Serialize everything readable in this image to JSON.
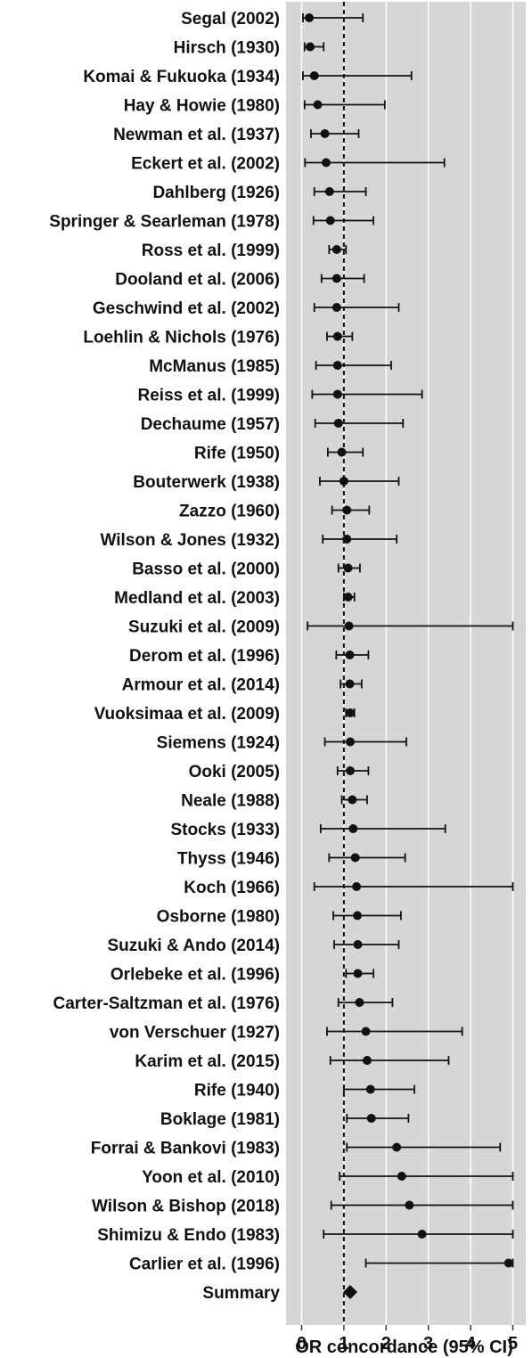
{
  "chart_data": {
    "type": "forest",
    "xlabel": "OR concordance (95% CI)",
    "xlim": [
      -0.1,
      5.25
    ],
    "xticks": [
      0,
      1,
      2,
      3,
      4,
      5
    ],
    "reference_line": 1,
    "grid": true,
    "colors": {
      "panel": "#d6d6d6",
      "gridline": "#ffffff",
      "marker": "#111111",
      "reference": "#111111"
    },
    "studies": [
      {
        "label": "Segal (2002)",
        "or": 0.18,
        "lo": 0.03,
        "hi": 1.45
      },
      {
        "label": "Hirsch (1930)",
        "or": 0.2,
        "lo": 0.07,
        "hi": 0.52
      },
      {
        "label": "Komai & Fukuoka (1934)",
        "or": 0.3,
        "lo": 0.03,
        "hi": 2.6
      },
      {
        "label": "Hay & Howie (1980)",
        "or": 0.38,
        "lo": 0.07,
        "hi": 1.97
      },
      {
        "label": "Newman et al. (1937)",
        "or": 0.55,
        "lo": 0.22,
        "hi": 1.35
      },
      {
        "label": "Eckert et al. (2002)",
        "or": 0.58,
        "lo": 0.08,
        "hi": 3.38
      },
      {
        "label": "Dahlberg (1926)",
        "or": 0.66,
        "lo": 0.3,
        "hi": 1.52
      },
      {
        "label": "Springer & Searleman (1978)",
        "or": 0.68,
        "lo": 0.28,
        "hi": 1.7
      },
      {
        "label": "Ross et al. (1999)",
        "or": 0.83,
        "lo": 0.65,
        "hi": 1.05
      },
      {
        "label": "Dooland et al. (2006)",
        "or": 0.83,
        "lo": 0.47,
        "hi": 1.48
      },
      {
        "label": "Geschwind et al. (2002)",
        "or": 0.83,
        "lo": 0.3,
        "hi": 2.3
      },
      {
        "label": "Loehlin & Nichols (1976)",
        "or": 0.85,
        "lo": 0.6,
        "hi": 1.2
      },
      {
        "label": "McManus (1985)",
        "or": 0.85,
        "lo": 0.34,
        "hi": 2.12
      },
      {
        "label": "Reiss et al. (1999)",
        "or": 0.85,
        "lo": 0.25,
        "hi": 2.85
      },
      {
        "label": "Dechaume (1957)",
        "or": 0.87,
        "lo": 0.32,
        "hi": 2.4
      },
      {
        "label": "Rife (1950)",
        "or": 0.95,
        "lo": 0.62,
        "hi": 1.45
      },
      {
        "label": "Bouterwerk (1938)",
        "or": 1.0,
        "lo": 0.43,
        "hi": 2.3
      },
      {
        "label": "Zazzo (1960)",
        "or": 1.07,
        "lo": 0.72,
        "hi": 1.6
      },
      {
        "label": "Wilson & Jones (1932)",
        "or": 1.07,
        "lo": 0.5,
        "hi": 2.25
      },
      {
        "label": "Basso et al. (2000)",
        "or": 1.1,
        "lo": 0.87,
        "hi": 1.38
      },
      {
        "label": "Medland et al. (2003)",
        "or": 1.1,
        "lo": 1.0,
        "hi": 1.25
      },
      {
        "label": "Suzuki et al. (2009)",
        "or": 1.12,
        "lo": 0.14,
        "hi": 5.0
      },
      {
        "label": "Derom et al. (1996)",
        "or": 1.14,
        "lo": 0.82,
        "hi": 1.58
      },
      {
        "label": "Armour et al. (2014)",
        "or": 1.14,
        "lo": 0.92,
        "hi": 1.42
      },
      {
        "label": "Vuoksimaa et al. (2009)",
        "or": 1.15,
        "lo": 1.05,
        "hi": 1.25
      },
      {
        "label": "Siemens (1924)",
        "or": 1.15,
        "lo": 0.55,
        "hi": 2.48
      },
      {
        "label": "Ooki (2005)",
        "or": 1.15,
        "lo": 0.85,
        "hi": 1.58
      },
      {
        "label": "Neale (1988)",
        "or": 1.2,
        "lo": 0.95,
        "hi": 1.55
      },
      {
        "label": "Stocks (1933)",
        "or": 1.22,
        "lo": 0.45,
        "hi": 3.4
      },
      {
        "label": "Thyss (1946)",
        "or": 1.27,
        "lo": 0.65,
        "hi": 2.45
      },
      {
        "label": "Koch (1966)",
        "or": 1.3,
        "lo": 0.3,
        "hi": 5.0
      },
      {
        "label": "Osborne (1980)",
        "or": 1.32,
        "lo": 0.75,
        "hi": 2.35
      },
      {
        "label": "Suzuki & Ando (2014)",
        "or": 1.33,
        "lo": 0.77,
        "hi": 2.3
      },
      {
        "label": "Orlebeke et al. (1996)",
        "or": 1.33,
        "lo": 1.05,
        "hi": 1.7
      },
      {
        "label": "Carter-Saltzman et al. (1976)",
        "or": 1.37,
        "lo": 0.87,
        "hi": 2.15
      },
      {
        "label": "von Verschuer (1927)",
        "or": 1.52,
        "lo": 0.6,
        "hi": 3.8
      },
      {
        "label": "Karim et al. (2015)",
        "or": 1.55,
        "lo": 0.68,
        "hi": 3.48
      },
      {
        "label": "Rife (1940)",
        "or": 1.63,
        "lo": 1.0,
        "hi": 2.67
      },
      {
        "label": "Boklage (1981)",
        "or": 1.65,
        "lo": 1.07,
        "hi": 2.53
      },
      {
        "label": "Forrai & Bankovi (1983)",
        "or": 2.25,
        "lo": 1.07,
        "hi": 4.7
      },
      {
        "label": "Yoon et al. (2010)",
        "or": 2.37,
        "lo": 0.9,
        "hi": 5.0
      },
      {
        "label": "Wilson & Bishop (2018)",
        "or": 2.55,
        "lo": 0.7,
        "hi": 5.0
      },
      {
        "label": "Shimizu & Endo (1983)",
        "or": 2.85,
        "lo": 0.52,
        "hi": 5.0
      },
      {
        "label": "Carlier et al. (1996)",
        "or": 4.9,
        "lo": 1.52,
        "hi": 5.0
      }
    ],
    "summary": {
      "label": "Summary",
      "or": 1.15
    }
  }
}
